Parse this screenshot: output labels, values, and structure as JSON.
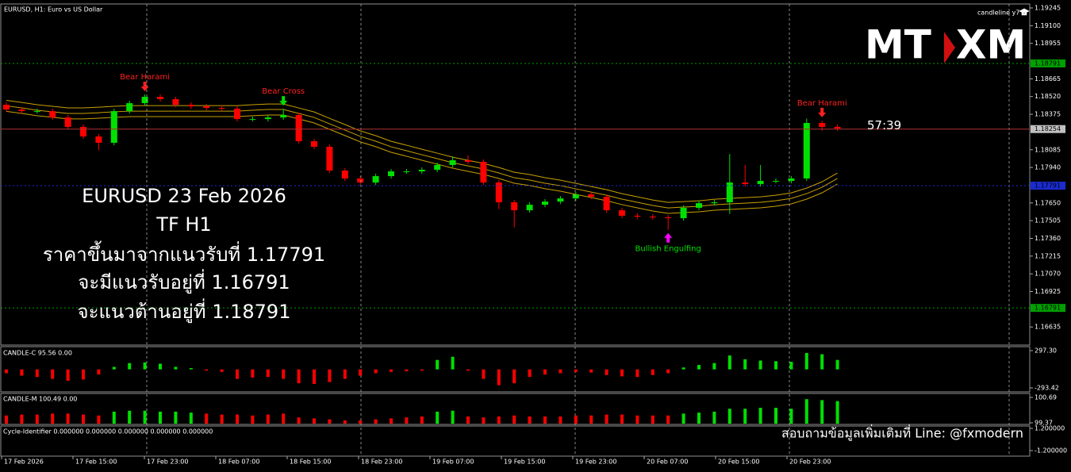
{
  "header": {
    "symbol": "EURUSD, H1:  Euro vs US Dollar",
    "indicator": "candleline y7"
  },
  "logo": {
    "left": "MT",
    "right": "XM"
  },
  "overlay": [
    "EURUSD 23 Feb 2026",
    "TF H1",
    "ราคาขึ้นมาจากแนวรับที่ 1.17791",
    "จะมีแนวรับอยู่ที่ 1.16791",
    "จะแนวต้านอยู่ที่ 1.18791"
  ],
  "footer_note": "สอบถามข้อมูลเพิ่มเติมที่ Line: @fxmodern",
  "chart_data": [
    {
      "type": "candlestick",
      "title": "EURUSD, H1",
      "time_labels": [
        "17 Feb 2026",
        "17 Feb 15:00",
        "17 Feb 23:00",
        "18 Feb 07:00",
        "18 Feb 15:00",
        "18 Feb 23:00",
        "19 Feb 07:00",
        "19 Feb 15:00",
        "19 Feb 23:00",
        "20 Feb 07:00",
        "20 Feb 15:00",
        "20 Feb 23:00"
      ],
      "open": [
        1.18453,
        1.18414,
        1.18401,
        1.18401,
        1.18349,
        1.18272,
        1.18194,
        1.18142,
        1.18401,
        1.18466,
        1.18518,
        1.18499,
        1.18453,
        1.1844,
        1.18427,
        1.18421,
        1.18336,
        1.18336,
        1.18349,
        1.18369,
        1.18155,
        1.18109,
        1.17915,
        1.1785,
        1.17817,
        1.17869,
        1.17908,
        1.17908,
        1.17921,
        1.1796,
        1.17999,
        1.17986,
        1.17817,
        1.17655,
        1.1759,
        1.17635,
        1.17661,
        1.17687,
        1.1772,
        1.177,
        1.1759,
        1.17545,
        1.17538,
        1.17532,
        1.17525,
        1.1761,
        1.17648,
        1.17655,
        1.17817,
        1.17804,
        1.1783,
        1.1783,
        1.1785,
        1.18304,
        1.18272
      ],
      "high": [
        1.18473,
        1.18434,
        1.18421,
        1.18421,
        1.18369,
        1.18292,
        1.18214,
        1.18421,
        1.18486,
        1.18538,
        1.18538,
        1.18519,
        1.18473,
        1.1846,
        1.18447,
        1.18441,
        1.18356,
        1.18369,
        1.1842,
        1.18389,
        1.18175,
        1.18129,
        1.17935,
        1.1787,
        1.17889,
        1.17928,
        1.17928,
        1.17941,
        1.1798,
        1.1803,
        1.1804,
        1.18006,
        1.17837,
        1.17675,
        1.17655,
        1.17681,
        1.17707,
        1.1774,
        1.1774,
        1.1772,
        1.1761,
        1.17565,
        1.17558,
        1.17552,
        1.1763,
        1.17668,
        1.17675,
        1.1805,
        1.1796,
        1.1796,
        1.1785,
        1.1787,
        1.1834,
        1.18324,
        1.18292
      ],
      "low": [
        1.18394,
        1.18381,
        1.18381,
        1.18329,
        1.18252,
        1.18174,
        1.1808,
        1.18122,
        1.18381,
        1.18446,
        1.18479,
        1.18433,
        1.1842,
        1.18407,
        1.18401,
        1.18316,
        1.18316,
        1.18316,
        1.18329,
        1.18135,
        1.18089,
        1.17895,
        1.1783,
        1.17797,
        1.17797,
        1.17849,
        1.17888,
        1.17888,
        1.17901,
        1.1794,
        1.17966,
        1.17797,
        1.176,
        1.1745,
        1.1757,
        1.17615,
        1.17641,
        1.17667,
        1.1768,
        1.1757,
        1.17525,
        1.17518,
        1.17512,
        1.1743,
        1.17505,
        1.1759,
        1.17628,
        1.1756,
        1.17784,
        1.17784,
        1.1781,
        1.1781,
        1.1783,
        1.1824,
        1.18239
      ],
      "close": [
        1.18414,
        1.18401,
        1.18401,
        1.18349,
        1.18272,
        1.18194,
        1.18142,
        1.18401,
        1.18466,
        1.18518,
        1.18499,
        1.18453,
        1.1844,
        1.18427,
        1.18421,
        1.18336,
        1.18336,
        1.18349,
        1.18369,
        1.18155,
        1.18109,
        1.17915,
        1.1785,
        1.17817,
        1.17869,
        1.17908,
        1.17908,
        1.17921,
        1.1796,
        1.17999,
        1.17986,
        1.17817,
        1.17655,
        1.1759,
        1.17635,
        1.17661,
        1.17687,
        1.1772,
        1.177,
        1.1759,
        1.17545,
        1.17538,
        1.17532,
        1.17525,
        1.1761,
        1.17648,
        1.17655,
        1.17817,
        1.17804,
        1.1783,
        1.1783,
        1.1785,
        1.18304,
        1.18272,
        1.18259
      ],
      "up_color": "#00e000",
      "down_color": "#ff0000",
      "series": [
        {
          "color": "#c8a000",
          "values": [
            1.18489,
            1.18472,
            1.18453,
            1.1844,
            1.18427,
            1.18427,
            1.18433,
            1.1844,
            1.18446,
            1.18446,
            1.18446,
            1.18446,
            1.18446,
            1.18446,
            1.18446,
            1.18446,
            1.18453,
            1.18459,
            1.18459,
            1.18427,
            1.18394,
            1.18342,
            1.18291,
            1.18239,
            1.182,
            1.18154,
            1.18122,
            1.18089,
            1.18057,
            1.18024,
            1.17998,
            1.17973,
            1.1794,
            1.17901,
            1.17882,
            1.17856,
            1.17836,
            1.1781,
            1.17784,
            1.17758,
            1.17726,
            1.177,
            1.17674,
            1.17654,
            1.17661,
            1.17667,
            1.1768,
            1.17687,
            1.17693,
            1.177,
            1.17713,
            1.17732,
            1.17771,
            1.17823,
            1.17895
          ]
        },
        {
          "color": "#c8a000",
          "values": [
            1.18444,
            1.18427,
            1.18408,
            1.18395,
            1.18382,
            1.18382,
            1.18388,
            1.18395,
            1.18401,
            1.18401,
            1.18401,
            1.18401,
            1.18401,
            1.18401,
            1.18401,
            1.18401,
            1.18408,
            1.18414,
            1.18414,
            1.18382,
            1.18349,
            1.18297,
            1.18246,
            1.18194,
            1.18155,
            1.18109,
            1.18077,
            1.18044,
            1.18012,
            1.17979,
            1.17953,
            1.17928,
            1.17895,
            1.17856,
            1.17837,
            1.17811,
            1.17791,
            1.17765,
            1.17739,
            1.17713,
            1.17681,
            1.17655,
            1.17629,
            1.17609,
            1.17616,
            1.17622,
            1.17635,
            1.17642,
            1.17648,
            1.17655,
            1.17668,
            1.17687,
            1.17726,
            1.17778,
            1.1785
          ]
        },
        {
          "color": "#c8a000",
          "values": [
            1.18399,
            1.18382,
            1.18363,
            1.1835,
            1.18337,
            1.18337,
            1.18343,
            1.1835,
            1.18356,
            1.18356,
            1.18356,
            1.18356,
            1.18356,
            1.18356,
            1.18356,
            1.18356,
            1.18363,
            1.18369,
            1.18369,
            1.18337,
            1.18304,
            1.18252,
            1.18201,
            1.18149,
            1.1811,
            1.18064,
            1.18032,
            1.17999,
            1.17967,
            1.17934,
            1.17908,
            1.17883,
            1.1785,
            1.17811,
            1.17792,
            1.17766,
            1.17746,
            1.1772,
            1.17694,
            1.17668,
            1.17636,
            1.1761,
            1.17584,
            1.17564,
            1.17571,
            1.17577,
            1.1759,
            1.17597,
            1.17603,
            1.1761,
            1.17623,
            1.17642,
            1.17681,
            1.17733,
            1.17805
          ]
        }
      ],
      "ylim": [
        1.16487,
        1.19271
      ],
      "yticks": [
        1.19245,
        {
          "value": 1.191,
          "label": "1.19100"
        },
        1.18955,
        1.18665,
        {
          "value": 1.1852,
          "label": "1.18520"
        },
        1.18375,
        1.18085,
        {
          "value": 1.1794,
          "label": "1.17940"
        },
        {
          "value": 1.1765,
          "label": "1.17650"
        },
        1.17505,
        {
          "value": 1.1736,
          "label": "1.17360"
        },
        1.17215,
        {
          "value": 1.1707,
          "label": "1.17070"
        },
        1.16925,
        1.16635
      ],
      "levels": [
        {
          "value": 1.18791,
          "color": "#00a000"
        },
        {
          "value": 1.17791,
          "color": "#1a2bd0"
        },
        {
          "value": 1.16791,
          "color": "#00a000"
        }
      ],
      "current_price": 1.18254,
      "current_color": "#b03030",
      "countdown": "57:39",
      "signals": [
        {
          "label": "Bear Harami",
          "candle": 9,
          "direction": "down",
          "label_color": "#ff2020",
          "arrow_color": "#ff2020"
        },
        {
          "label": "Bear Cross",
          "candle": 18,
          "direction": "down",
          "label_color": "#ff2020",
          "arrow_color": "#00e000"
        },
        {
          "label": "Bullish Engulfing",
          "candle": 43,
          "direction": "up",
          "label_color": "#00e000",
          "arrow_color": "#ff00ff"
        },
        {
          "label": "Bear Harami",
          "candle": 53,
          "direction": "down",
          "label_color": "#ff2020",
          "arrow_color": "#ff2020"
        }
      ]
    },
    {
      "type": "bar",
      "title": "CANDLE-C 95.56 0.00",
      "values": [
        -60,
        -100,
        -120,
        -150,
        -180,
        -160,
        -80,
        40,
        100,
        110,
        90,
        40,
        20,
        -20,
        -40,
        -150,
        -130,
        -120,
        -150,
        -220,
        -230,
        -200,
        -150,
        -100,
        -60,
        -40,
        -30,
        -20,
        150,
        200,
        -20,
        -150,
        -250,
        -220,
        -120,
        -80,
        -60,
        -40,
        -50,
        -90,
        -110,
        -120,
        -90,
        -60,
        30,
        70,
        100,
        220,
        160,
        140,
        130,
        120,
        260,
        240,
        150
      ],
      "ylim": [
        -293.42,
        297.3
      ],
      "yticks": [
        {
          "value": 297.3,
          "label": "297.30"
        },
        -293.42
      ],
      "up_color": "#00e000",
      "down_color": "#ff0000"
    },
    {
      "type": "bar",
      "title": "CANDLE-M 100.49 0.00",
      "values": [
        99.75,
        99.8,
        99.8,
        99.85,
        99.85,
        99.8,
        99.75,
        99.95,
        100.0,
        100.0,
        99.95,
        99.95,
        99.9,
        99.85,
        99.8,
        99.8,
        99.75,
        99.8,
        99.85,
        99.65,
        99.6,
        99.55,
        99.5,
        99.5,
        99.55,
        99.6,
        99.65,
        99.7,
        99.95,
        100.0,
        99.7,
        99.65,
        99.7,
        99.75,
        99.7,
        99.7,
        99.7,
        99.75,
        99.75,
        99.8,
        99.8,
        99.75,
        99.75,
        99.75,
        99.85,
        99.9,
        99.95,
        100.1,
        100.1,
        100.15,
        100.15,
        100.1,
        100.6,
        100.55,
        100.5
      ],
      "ylim": [
        99.37,
        100.69
      ],
      "yticks": [
        100.69,
        99.37
      ],
      "up_color": "#00e000",
      "down_color": "#ff0000"
    },
    {
      "type": "line",
      "title": "Cycle-Identifier 0.000000 0.000000 0.000000 0.000000 0.000000",
      "values": [],
      "ylim": [
        -1.2,
        1.2
      ],
      "yticks": [
        {
          "value": 1.2,
          "label": "1.200000"
        },
        {
          "value": -1.2,
          "label": "-1.200000"
        }
      ]
    }
  ]
}
